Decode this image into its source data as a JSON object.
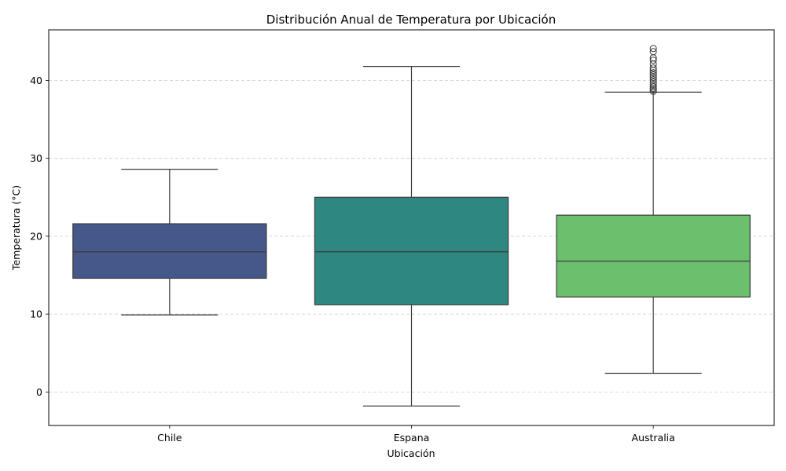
{
  "chart_data": {
    "type": "box",
    "title": "Distribución Anual de Temperatura por Ubicación",
    "xlabel": "Ubicación",
    "ylabel": "Temperatura (°C)",
    "ylim": [
      -4.3,
      46.5
    ],
    "yticks": [
      0,
      10,
      20,
      30,
      40
    ],
    "grid": "y-dashed",
    "categories": [
      "Chile",
      "Espana",
      "Australia"
    ],
    "boxes": [
      {
        "name": "Chile",
        "whisker_low": 9.9,
        "q1": 14.6,
        "median": 18.0,
        "q3": 21.6,
        "whisker_high": 28.6,
        "color": "#46588a",
        "outliers": []
      },
      {
        "name": "Espana",
        "whisker_low": -1.8,
        "q1": 11.2,
        "median": 18.0,
        "q3": 25.0,
        "whisker_high": 41.8,
        "color": "#2e8881",
        "outliers": []
      },
      {
        "name": "Australia",
        "whisker_low": 2.4,
        "q1": 12.2,
        "median": 16.8,
        "q3": 22.7,
        "whisker_high": 38.5,
        "color": "#6cbf6d",
        "outliers": [
          38.6,
          38.8,
          39.0,
          39.2,
          39.5,
          39.8,
          40.1,
          40.4,
          40.7,
          41.0,
          41.3,
          41.6,
          42.1,
          42.6,
          42.9,
          43.7,
          44.1
        ]
      }
    ]
  }
}
